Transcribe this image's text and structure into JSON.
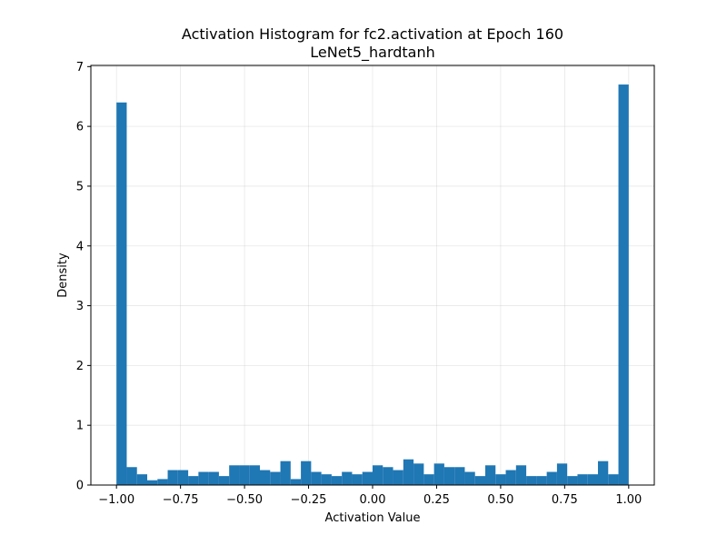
{
  "chart_data": {
    "type": "bar",
    "title": "Activation Histogram for fc2.activation at Epoch 160",
    "subtitle": "LeNet5_hardtanh",
    "xlabel": "Activation Value",
    "ylabel": "Density",
    "xlim": [
      -1.1,
      1.1
    ],
    "ylim": [
      0,
      7.02
    ],
    "grid": true,
    "x_ticks": [
      -1.0,
      -0.75,
      -0.5,
      -0.25,
      0.0,
      0.25,
      0.5,
      0.75,
      1.0
    ],
    "x_tick_labels": [
      "−1.00",
      "−0.75",
      "−0.50",
      "−0.25",
      "0.00",
      "0.25",
      "0.50",
      "0.75",
      "1.00"
    ],
    "y_ticks": [
      0,
      1,
      2,
      3,
      4,
      5,
      6,
      7
    ],
    "y_tick_labels": [
      "0",
      "1",
      "2",
      "3",
      "4",
      "5",
      "6",
      "7"
    ],
    "bar_color": "#1f77b4",
    "bin_start": -1.0,
    "bin_end": 1.0,
    "values": [
      6.4,
      0.3,
      0.18,
      0.08,
      0.1,
      0.25,
      0.25,
      0.15,
      0.22,
      0.22,
      0.15,
      0.33,
      0.33,
      0.33,
      0.25,
      0.22,
      0.4,
      0.1,
      0.4,
      0.22,
      0.18,
      0.15,
      0.22,
      0.18,
      0.22,
      0.33,
      0.3,
      0.25,
      0.43,
      0.36,
      0.18,
      0.36,
      0.3,
      0.3,
      0.22,
      0.15,
      0.33,
      0.18,
      0.25,
      0.33,
      0.15,
      0.15,
      0.22,
      0.36,
      0.15,
      0.18,
      0.18,
      0.4,
      0.18,
      6.7
    ]
  }
}
